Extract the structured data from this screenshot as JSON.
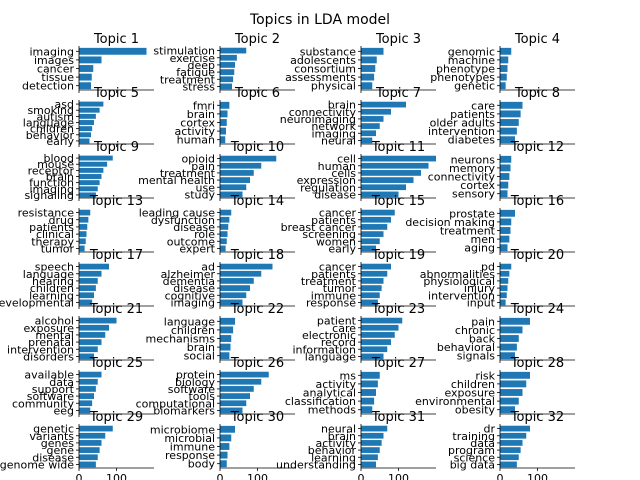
{
  "title": "Topics in LDA model",
  "bar_color": "#1f77b4",
  "xticks": [
    0,
    100
  ],
  "xlim": [
    0,
    200
  ],
  "chart_data": [
    {
      "type": "bar",
      "title": "Topic 1",
      "categories": [
        "imaging",
        "images",
        "cancer",
        "tissue",
        "detection"
      ],
      "values": [
        180,
        60,
        38,
        34,
        32
      ]
    },
    {
      "type": "bar",
      "title": "Topic 2",
      "categories": [
        "stimulation",
        "exercise",
        "deep",
        "fatigue",
        "treatment",
        "stress"
      ],
      "values": [
        70,
        45,
        40,
        38,
        35,
        32
      ]
    },
    {
      "type": "bar",
      "title": "Topic 3",
      "categories": [
        "substance",
        "adolescents",
        "consortium",
        "assessments",
        "physical"
      ],
      "values": [
        60,
        42,
        38,
        35,
        30
      ]
    },
    {
      "type": "bar",
      "title": "Topic 4",
      "categories": [
        "genomic",
        "machine",
        "phenotype",
        "phenotypes",
        "genetic"
      ],
      "values": [
        30,
        22,
        20,
        18,
        15
      ]
    },
    {
      "type": "bar",
      "title": "Topic 5",
      "categories": [
        "asd",
        "smoking",
        "autism",
        "language",
        "children",
        "behavior",
        "early"
      ],
      "values": [
        65,
        55,
        45,
        40,
        35,
        32,
        28
      ]
    },
    {
      "type": "bar",
      "title": "Topic 6",
      "categories": [
        "fmri",
        "brain",
        "cortex",
        "activity",
        "human"
      ],
      "values": [
        25,
        20,
        18,
        16,
        14
      ]
    },
    {
      "type": "bar",
      "title": "Topic 7",
      "categories": [
        "brain",
        "connectivity",
        "neuroimaging",
        "network",
        "imaging",
        "neural"
      ],
      "values": [
        120,
        80,
        60,
        50,
        40,
        30
      ]
    },
    {
      "type": "bar",
      "title": "Topic 8",
      "categories": [
        "care",
        "patients",
        "older adults",
        "intervention",
        "diabetes"
      ],
      "values": [
        60,
        55,
        50,
        45,
        40
      ]
    },
    {
      "type": "bar",
      "title": "Topic 9",
      "categories": [
        "blood",
        "mouse",
        "receptor",
        "brain",
        "function",
        "imaging",
        "signaling"
      ],
      "values": [
        90,
        75,
        65,
        60,
        55,
        50,
        45
      ]
    },
    {
      "type": "bar",
      "title": "Topic 10",
      "categories": [
        "opioid",
        "pain",
        "treatment",
        "mental health",
        "use",
        "study"
      ],
      "values": [
        150,
        110,
        90,
        80,
        70,
        60
      ]
    },
    {
      "type": "bar",
      "title": "Topic 11",
      "categories": [
        "cell",
        "human",
        "cells",
        "expression",
        "regulation",
        "disease"
      ],
      "values": [
        200,
        180,
        160,
        140,
        120,
        100
      ]
    },
    {
      "type": "bar",
      "title": "Topic 12",
      "categories": [
        "neurons",
        "memory",
        "connectivity",
        "cortex",
        "sensory"
      ],
      "values": [
        30,
        28,
        25,
        22,
        20
      ]
    },
    {
      "type": "bar",
      "title": "Topic 13",
      "categories": [
        "resistance",
        "drug",
        "patients",
        "clinical",
        "therapy",
        "tumor"
      ],
      "values": [
        30,
        25,
        22,
        20,
        18,
        15
      ]
    },
    {
      "type": "bar",
      "title": "Topic 14",
      "categories": [
        "leading cause",
        "dysfunction",
        "disease",
        "role",
        "outcome",
        "expert"
      ],
      "values": [
        30,
        25,
        22,
        20,
        18,
        15
      ]
    },
    {
      "type": "bar",
      "title": "Topic 15",
      "categories": [
        "cancer",
        "patients",
        "breast cancer",
        "screening",
        "women",
        "early"
      ],
      "values": [
        90,
        80,
        70,
        60,
        50,
        40
      ]
    },
    {
      "type": "bar",
      "title": "Topic 16",
      "categories": [
        "prostate",
        "decision making",
        "treatment",
        "men",
        "aging"
      ],
      "values": [
        40,
        30,
        28,
        25,
        20
      ]
    },
    {
      "type": "bar",
      "title": "Topic 17",
      "categories": [
        "speech",
        "language",
        "hearing",
        "children",
        "learning",
        "developmental"
      ],
      "values": [
        80,
        60,
        50,
        45,
        40,
        35
      ]
    },
    {
      "type": "bar",
      "title": "Topic 18",
      "categories": [
        "ad",
        "alzheimer",
        "dementia",
        "disease",
        "cognitive",
        "imaging"
      ],
      "values": [
        140,
        110,
        90,
        80,
        70,
        60
      ]
    },
    {
      "type": "bar",
      "title": "Topic 19",
      "categories": [
        "cancer",
        "patients",
        "treatment",
        "tumor",
        "immune",
        "response"
      ],
      "values": [
        80,
        70,
        60,
        55,
        50,
        45
      ]
    },
    {
      "type": "bar",
      "title": "Topic 20",
      "categories": [
        "pd",
        "abnormalities",
        "physiological",
        "injury",
        "intervention",
        "input"
      ],
      "values": [
        30,
        25,
        22,
        20,
        18,
        15
      ]
    },
    {
      "type": "bar",
      "title": "Topic 21",
      "categories": [
        "alcohol",
        "exposure",
        "mental",
        "prenatal",
        "intervention",
        "disorders"
      ],
      "values": [
        100,
        80,
        70,
        60,
        50,
        40
      ]
    },
    {
      "type": "bar",
      "title": "Topic 22",
      "categories": [
        "language",
        "children",
        "mechanisms",
        "brain",
        "social"
      ],
      "values": [
        40,
        35,
        30,
        28,
        25
      ]
    },
    {
      "type": "bar",
      "title": "Topic 23",
      "categories": [
        "patient",
        "care",
        "electronic",
        "record",
        "information",
        "language"
      ],
      "values": [
        110,
        100,
        90,
        80,
        70,
        60
      ]
    },
    {
      "type": "bar",
      "title": "Topic 24",
      "categories": [
        "pain",
        "chronic",
        "back",
        "behavioral",
        "signals"
      ],
      "values": [
        80,
        60,
        50,
        45,
        40
      ]
    },
    {
      "type": "bar",
      "title": "Topic 25",
      "categories": [
        "available",
        "data",
        "support",
        "software",
        "community",
        "eeg"
      ],
      "values": [
        60,
        50,
        45,
        40,
        35,
        30
      ]
    },
    {
      "type": "bar",
      "title": "Topic 26",
      "categories": [
        "protein",
        "biology",
        "software",
        "tools",
        "computational",
        "biomarkers"
      ],
      "values": [
        130,
        110,
        90,
        80,
        70,
        60
      ]
    },
    {
      "type": "bar",
      "title": "Topic 27",
      "categories": [
        "ms",
        "activity",
        "analytical",
        "classification",
        "methods"
      ],
      "values": [
        50,
        45,
        40,
        35,
        30
      ]
    },
    {
      "type": "bar",
      "title": "Topic 28",
      "categories": [
        "risk",
        "children",
        "exposure",
        "environmental",
        "obesity"
      ],
      "values": [
        80,
        70,
        60,
        50,
        40
      ]
    },
    {
      "type": "bar",
      "title": "Topic 29",
      "categories": [
        "genetic",
        "variants",
        "genes",
        "gene",
        "disease",
        "genome wide"
      ],
      "values": [
        90,
        70,
        60,
        55,
        50,
        45
      ]
    },
    {
      "type": "bar",
      "title": "Topic 30",
      "categories": [
        "microbiome",
        "microbial",
        "immune",
        "response",
        "body"
      ],
      "values": [
        40,
        30,
        25,
        20,
        18
      ]
    },
    {
      "type": "bar",
      "title": "Topic 31",
      "categories": [
        "neural",
        "brain",
        "activity",
        "behavior",
        "learning",
        "understanding"
      ],
      "values": [
        70,
        60,
        55,
        50,
        45,
        40
      ]
    },
    {
      "type": "bar",
      "title": "Topic 32",
      "categories": [
        "dr",
        "training",
        "data",
        "program",
        "science",
        "big data"
      ],
      "values": [
        80,
        70,
        60,
        55,
        50,
        45
      ]
    }
  ]
}
